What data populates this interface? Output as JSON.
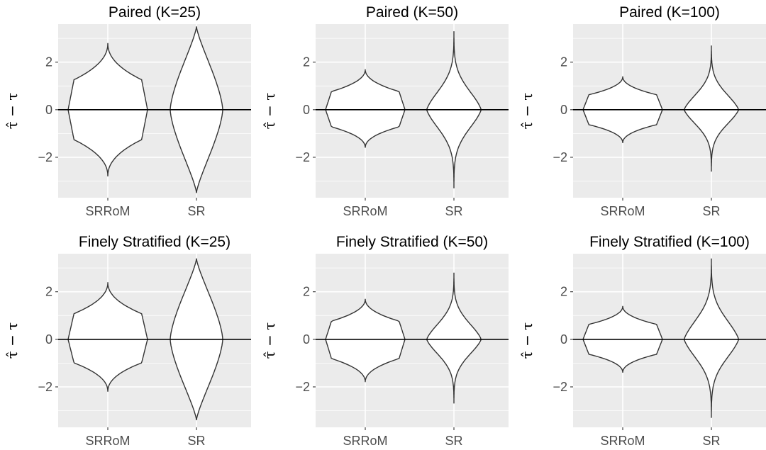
{
  "chart_data": [
    {
      "type": "violin",
      "title": "Paired (K=25)",
      "ylabel": "τ̂ − τ",
      "categories": [
        "SRRoM",
        "SR"
      ],
      "yticks": [
        -2,
        0,
        2
      ],
      "ylim": [
        -3.7,
        3.6
      ],
      "hline": 0,
      "grid": true,
      "violins": [
        {
          "category": "SRRoM",
          "range": [
            -2.8,
            2.8
          ],
          "shape": "bulb"
        },
        {
          "category": "SR",
          "range": [
            -3.5,
            3.5
          ],
          "shape": "spindle"
        }
      ]
    },
    {
      "type": "violin",
      "title": "Paired (K=50)",
      "ylabel": "τ̂ − τ",
      "categories": [
        "SRRoM",
        "SR"
      ],
      "yticks": [
        -2,
        0,
        2
      ],
      "ylim": [
        -3.7,
        3.6
      ],
      "hline": 0,
      "grid": true,
      "violins": [
        {
          "category": "SRRoM",
          "range": [
            -1.6,
            1.7
          ],
          "shape": "bulb"
        },
        {
          "category": "SR",
          "range": [
            -3.3,
            3.3
          ],
          "shape": "flask"
        }
      ]
    },
    {
      "type": "violin",
      "title": "Paired (K=100)",
      "ylabel": "τ̂ − τ",
      "categories": [
        "SRRoM",
        "SR"
      ],
      "yticks": [
        -2,
        0,
        2
      ],
      "ylim": [
        -3.7,
        3.6
      ],
      "hline": 0,
      "grid": true,
      "violins": [
        {
          "category": "SRRoM",
          "range": [
            -1.4,
            1.4
          ],
          "shape": "bulb"
        },
        {
          "category": "SR",
          "range": [
            -2.6,
            2.7
          ],
          "shape": "flask"
        }
      ]
    },
    {
      "type": "violin",
      "title": "Finely Stratified (K=25)",
      "ylabel": "τ̂ − τ",
      "categories": [
        "SRRoM",
        "SR"
      ],
      "yticks": [
        -2,
        0,
        2
      ],
      "ylim": [
        -3.7,
        3.6
      ],
      "hline": 0,
      "grid": true,
      "violins": [
        {
          "category": "SRRoM",
          "range": [
            -2.2,
            2.4
          ],
          "shape": "bulb"
        },
        {
          "category": "SR",
          "range": [
            -3.4,
            3.4
          ],
          "shape": "spindle"
        }
      ]
    },
    {
      "type": "violin",
      "title": "Finely Stratified (K=50)",
      "ylabel": "τ̂ − τ",
      "categories": [
        "SRRoM",
        "SR"
      ],
      "yticks": [
        -2,
        0,
        2
      ],
      "ylim": [
        -3.7,
        3.6
      ],
      "hline": 0,
      "grid": true,
      "violins": [
        {
          "category": "SRRoM",
          "range": [
            -1.8,
            1.7
          ],
          "shape": "bulb"
        },
        {
          "category": "SR",
          "range": [
            -2.7,
            2.8
          ],
          "shape": "flask"
        }
      ]
    },
    {
      "type": "violin",
      "title": "Finely Stratified (K=100)",
      "ylabel": "τ̂ − τ",
      "categories": [
        "SRRoM",
        "SR"
      ],
      "yticks": [
        -2,
        0,
        2
      ],
      "ylim": [
        -3.7,
        3.6
      ],
      "hline": 0,
      "grid": true,
      "violins": [
        {
          "category": "SRRoM",
          "range": [
            -1.4,
            1.4
          ],
          "shape": "bulb"
        },
        {
          "category": "SR",
          "range": [
            -3.3,
            3.4
          ],
          "shape": "flask"
        }
      ]
    }
  ],
  "colors": {
    "panel_background": "#ebebeb",
    "gridline": "#ffffff",
    "violin_fill": "#ffffff",
    "violin_outline": "#333333",
    "zero_line": "#000000",
    "tick_text": "#4d4d4d"
  }
}
